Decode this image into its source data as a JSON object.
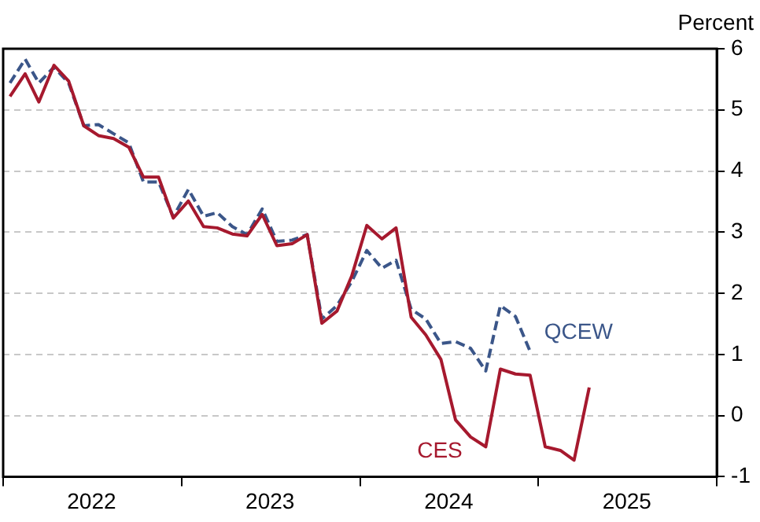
{
  "chart_data": {
    "type": "line",
    "ylabel": "Percent",
    "x": [
      "2022-01-15",
      "2022-02-15",
      "2022-03-15",
      "2022-04-15",
      "2022-05-15",
      "2022-06-15",
      "2022-07-15",
      "2022-08-15",
      "2022-09-15",
      "2022-10-15",
      "2022-11-15",
      "2022-12-15",
      "2023-01-15",
      "2023-02-15",
      "2023-03-15",
      "2023-04-15",
      "2023-05-15",
      "2023-06-15",
      "2023-07-15",
      "2023-08-15",
      "2023-09-15",
      "2023-10-15",
      "2023-11-15",
      "2023-12-15",
      "2024-01-15",
      "2024-02-15",
      "2024-03-15",
      "2024-04-15",
      "2024-05-15",
      "2024-06-15",
      "2024-07-15",
      "2024-08-15",
      "2024-09-15",
      "2024-10-15",
      "2024-11-15",
      "2024-12-15",
      "2025-01-15",
      "2025-02-15",
      "2025-03-15",
      "2025-04-15"
    ],
    "series": [
      {
        "name": "CES",
        "color": "#a6192e",
        "line_style": "solid",
        "values": [
          5.22,
          5.59,
          5.13,
          5.73,
          5.47,
          4.74,
          4.58,
          4.53,
          4.39,
          3.9,
          3.9,
          3.23,
          3.51,
          3.09,
          3.07,
          2.97,
          2.94,
          3.29,
          2.78,
          2.81,
          2.96,
          1.51,
          1.71,
          2.28,
          3.11,
          2.89,
          3.07,
          1.61,
          1.32,
          0.92,
          -0.07,
          -0.35,
          -0.51,
          0.76,
          0.68,
          0.66,
          -0.51,
          -0.57,
          -0.73,
          0.46
        ]
      },
      {
        "name": "QCEW",
        "color": "#3b5689",
        "line_style": "dashed",
        "values": [
          5.44,
          5.83,
          5.44,
          5.7,
          5.44,
          4.74,
          4.76,
          4.61,
          4.46,
          3.82,
          3.82,
          3.25,
          3.7,
          3.26,
          3.32,
          3.09,
          2.96,
          3.38,
          2.85,
          2.87,
          2.96,
          1.58,
          1.8,
          2.19,
          2.7,
          2.41,
          2.54,
          1.74,
          1.58,
          1.18,
          1.21,
          1.1,
          0.73,
          1.8,
          1.62,
          1.05,
          null,
          null,
          null,
          null
        ]
      }
    ],
    "xlim": [
      "2022-01-01",
      "2026-01-01"
    ],
    "xticks": [
      {
        "value": "2022-01-01",
        "label": null
      },
      {
        "value": "2022-07-01",
        "label": "2022"
      },
      {
        "value": "2023-01-01",
        "label": null
      },
      {
        "value": "2023-07-01",
        "label": "2023"
      },
      {
        "value": "2024-01-01",
        "label": null
      },
      {
        "value": "2024-07-01",
        "label": "2024"
      },
      {
        "value": "2025-01-01",
        "label": null
      },
      {
        "value": "2025-07-01",
        "label": "2025"
      },
      {
        "value": "2026-01-01",
        "label": null
      }
    ],
    "ylim": [
      -1,
      6
    ],
    "yticks": [
      -1,
      0,
      1,
      2,
      3,
      4,
      5,
      6
    ],
    "grid": "y",
    "legend": false,
    "marker": "none"
  }
}
